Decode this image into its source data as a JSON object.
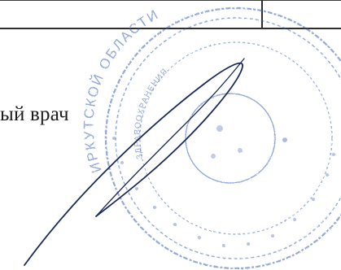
{
  "document": {
    "signature_line_text": "ый врач"
  },
  "stamp": {
    "ring_text_top": "ИРКУТСКОЙ ОБЛАСТИ",
    "ring_text_inner": "ЗДРАВООХРАНЕНИЯ",
    "color": "#3f63b8"
  },
  "signature": {
    "color": "#1b2a5a"
  }
}
